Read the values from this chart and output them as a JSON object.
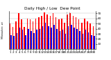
{
  "title": "Daily High / Low  Dew Point",
  "ylabel_left": "Milwaukee, wi",
  "categories": [
    "1",
    "2",
    "3",
    "4",
    "5",
    "6",
    "7",
    "8",
    "9",
    "10",
    "11",
    "12",
    "13",
    "14",
    "15",
    "16",
    "17",
    "18",
    "19",
    "20",
    "21",
    "22",
    "23",
    "24",
    "25",
    "26",
    "27",
    "28",
    "29",
    "30"
  ],
  "high_values": [
    50,
    44,
    55,
    70,
    58,
    44,
    60,
    58,
    55,
    60,
    62,
    65,
    72,
    68,
    65,
    70,
    62,
    58,
    60,
    52,
    68,
    70,
    65,
    62,
    58,
    52,
    60,
    55,
    50,
    45
  ],
  "low_values": [
    28,
    26,
    32,
    42,
    38,
    28,
    40,
    35,
    32,
    38,
    40,
    45,
    52,
    45,
    42,
    48,
    40,
    35,
    38,
    30,
    45,
    48,
    42,
    40,
    35,
    30,
    38,
    33,
    28,
    26
  ],
  "high_color": "#ff0000",
  "low_color": "#0000ff",
  "bg_color": "#ffffff",
  "plot_bg": "#ffffff",
  "ylim": [
    0,
    75
  ],
  "ytick_values": [
    10,
    20,
    30,
    40,
    50,
    60,
    70
  ],
  "ytick_labels": [
    "10",
    "20",
    "30",
    "40",
    "50",
    "60",
    "70"
  ],
  "grid_color": "#bbbbbb",
  "dashed_vlines": [
    19.5,
    20.5
  ],
  "legend_high": "High",
  "legend_low": "Low",
  "title_fontsize": 4.2,
  "tick_fontsize": 3.0,
  "bar_width": 0.38
}
